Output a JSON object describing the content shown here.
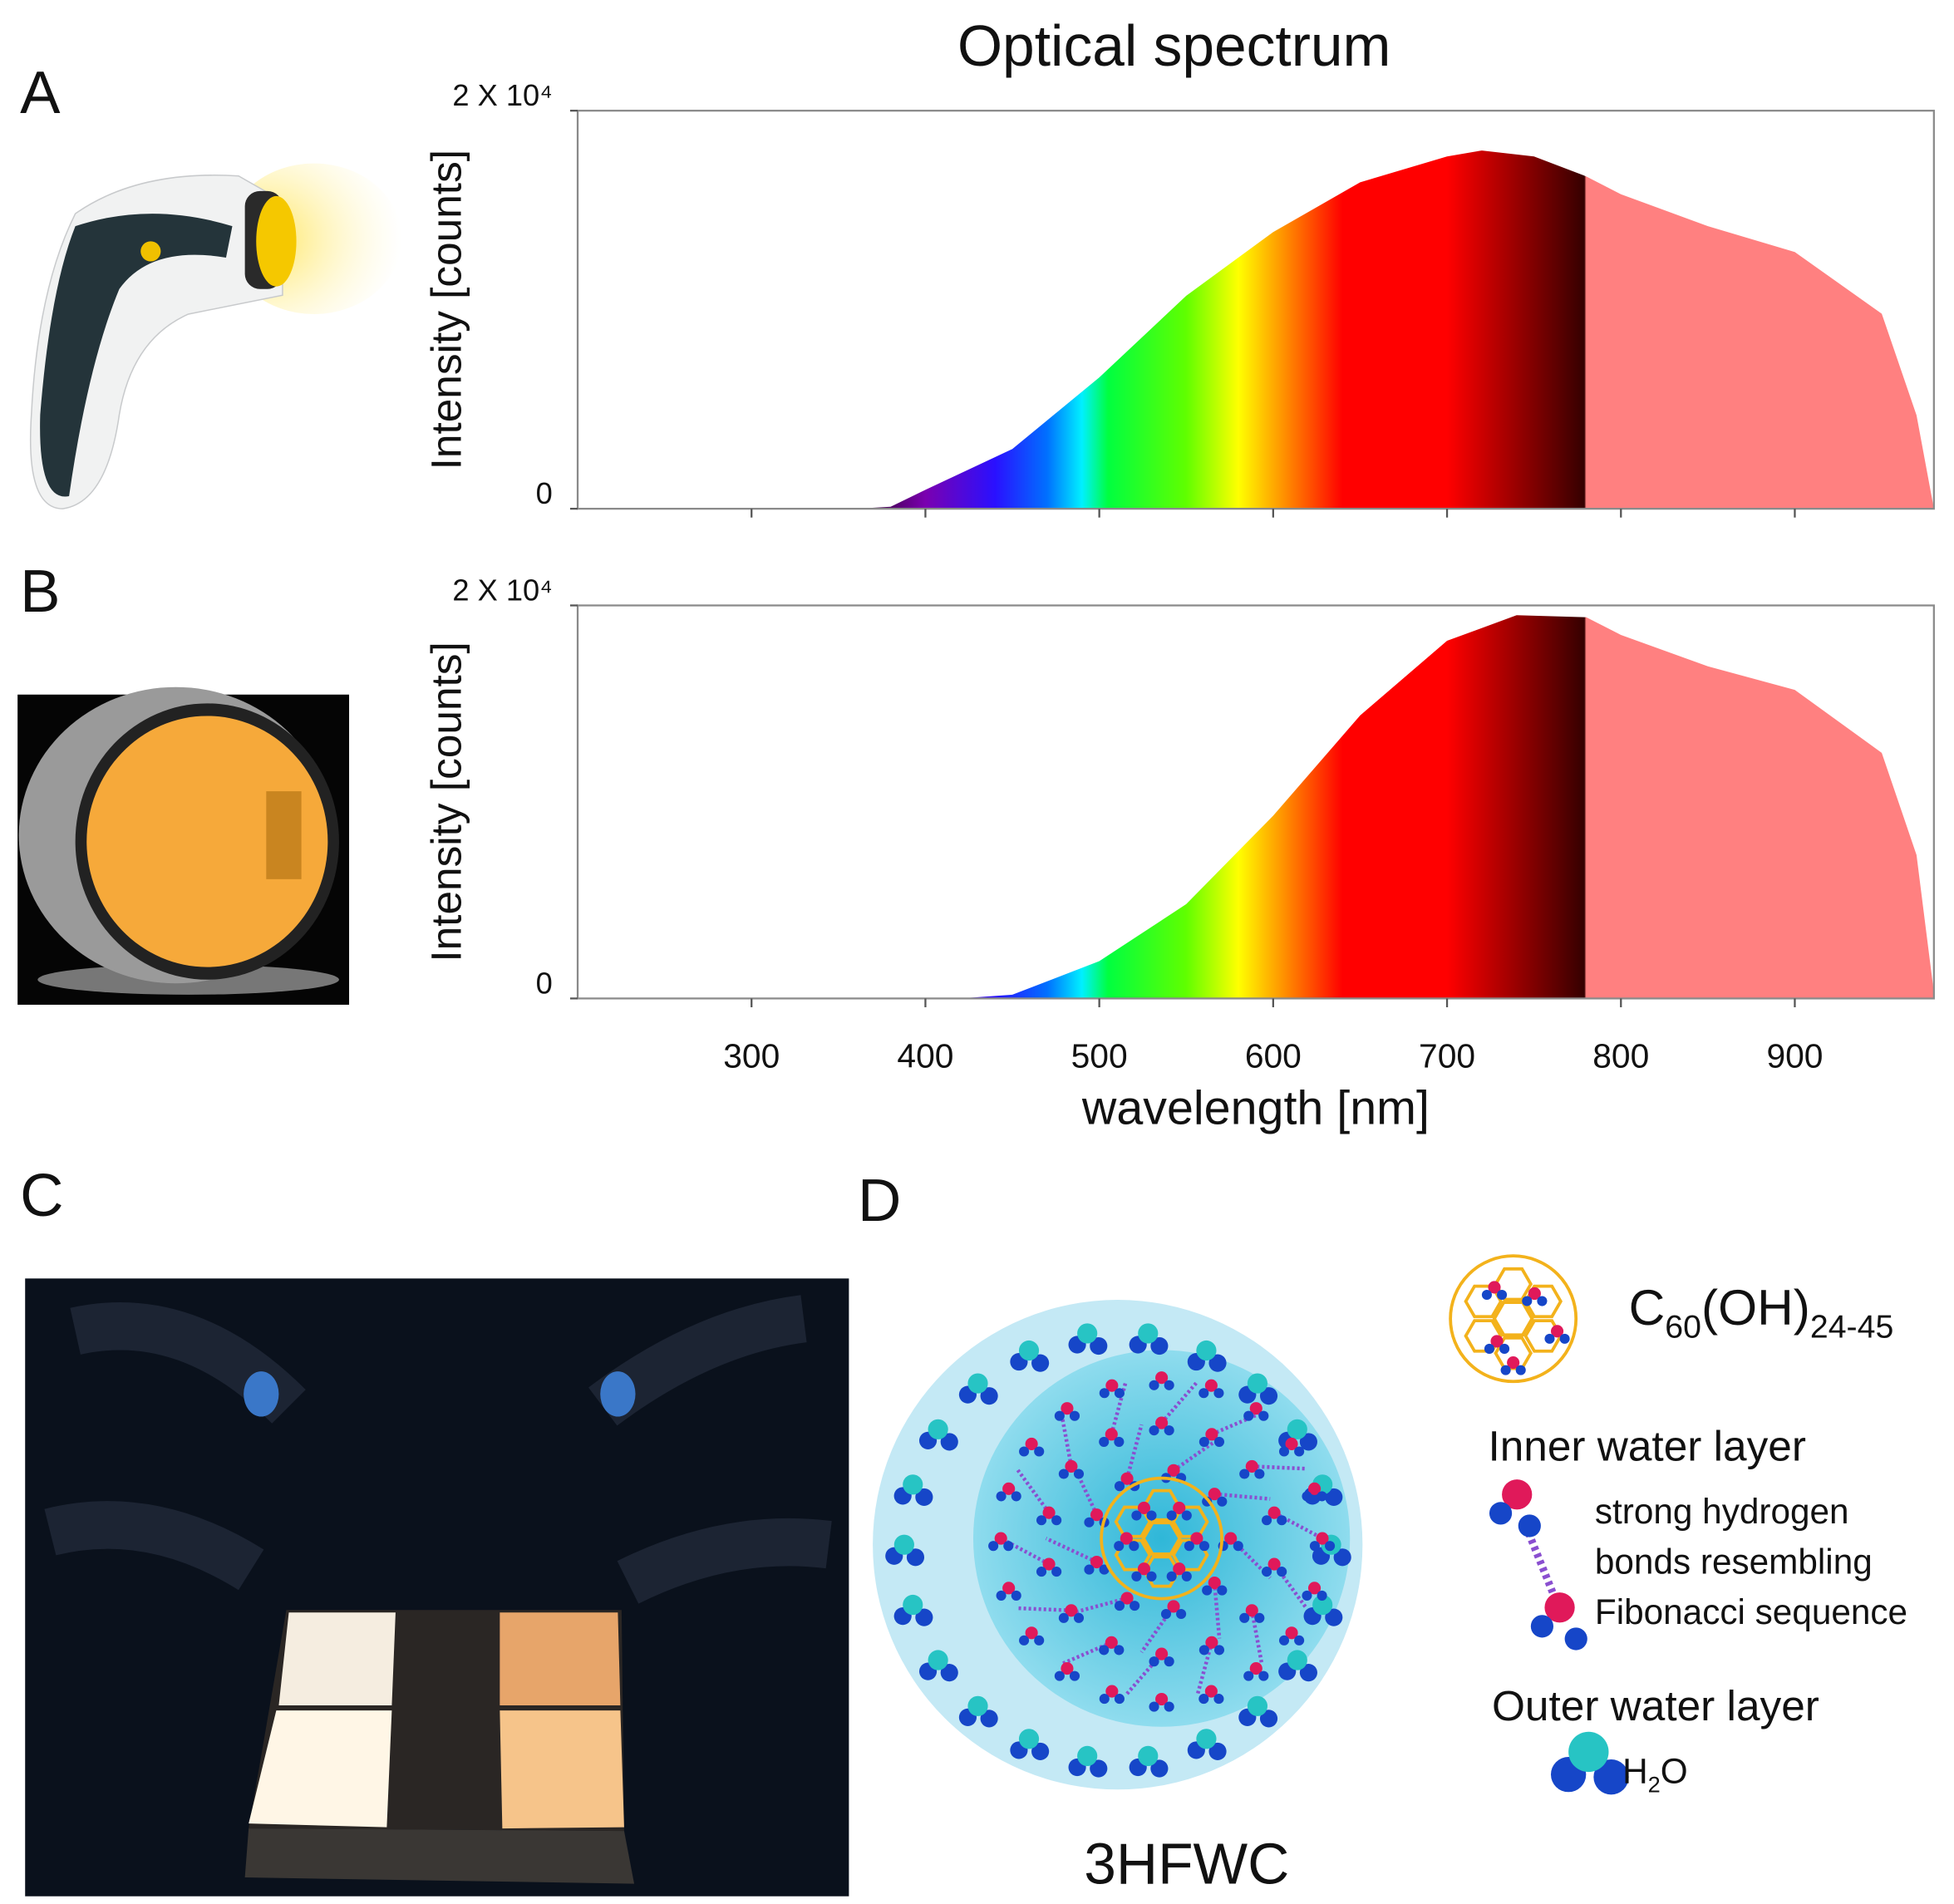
{
  "panel_labels": [
    "A",
    "B",
    "C",
    "D"
  ],
  "chart_data": [
    {
      "type": "area",
      "title": "Optical spectrum",
      "y_label": "Intensity [counts]",
      "tick_labels": false,
      "x": [
        360,
        380,
        400,
        450,
        500,
        550,
        600,
        650,
        700,
        720,
        750,
        780,
        800,
        850,
        900,
        950,
        970,
        980
      ],
      "values": [
        0,
        100,
        950,
        3000,
        6600,
        10700,
        13900,
        16400,
        17700,
        18000,
        17700,
        16700,
        15800,
        14200,
        12900,
        9800,
        4700,
        0
      ],
      "xlim": [
        200,
        980
      ],
      "xticks": [
        300,
        400,
        500,
        600,
        700,
        800,
        900
      ],
      "ylim": [
        0,
        20000
      ],
      "yticks": [
        0,
        {
          "value": 20000,
          "label": "2 X 10⁴"
        }
      ]
    },
    {
      "type": "area",
      "y_label": "Intensity [counts]",
      "x_label": "wavelength [nm]",
      "tick_labels": true,
      "x": [
        420,
        450,
        500,
        550,
        600,
        650,
        700,
        740,
        780,
        800,
        850,
        900,
        950,
        970,
        980
      ],
      "values": [
        0,
        190,
        1900,
        4800,
        9300,
        14400,
        18200,
        19500,
        19400,
        18500,
        16900,
        15700,
        12500,
        7300,
        300
      ],
      "xlim": [
        200,
        980
      ],
      "xticks": [
        300,
        400,
        500,
        600,
        700,
        800,
        900
      ],
      "ylim": [
        0,
        20000
      ],
      "yticks": [
        0,
        {
          "value": 20000,
          "label": "2 X 10⁴"
        }
      ]
    }
  ],
  "diagram": {
    "formula": {
      "element": "C",
      "count": "60",
      "group": "(OH)",
      "range": "24-45"
    },
    "inner_title": "Inner water layer",
    "inner_lines": [
      "strong hydrogen",
      "bonds resembling",
      "Fibonacci sequence"
    ],
    "outer_title": "Outer water layer",
    "water": {
      "h": "H",
      "n": "2",
      "o": "O"
    },
    "caption": "3HFWC"
  }
}
